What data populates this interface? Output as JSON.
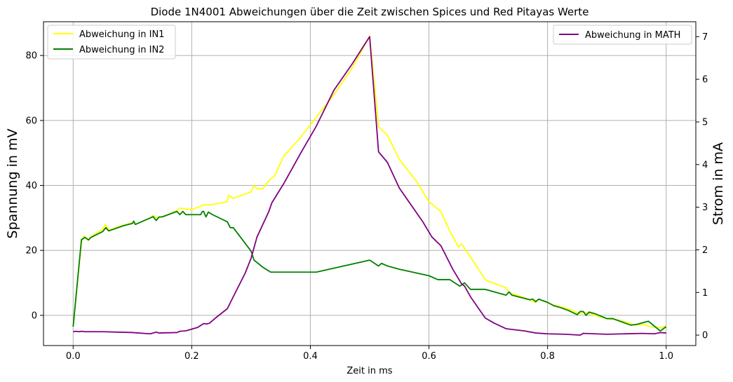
{
  "chart_data": {
    "type": "line",
    "title": "Diode 1N4001 Abweichungen über die Zeit zwischen Spices und Red Pitayas Werte",
    "xlabel": "Zeit in ms",
    "ylabel_left": "Spannung in mV",
    "ylabel_right": "Strom in mA",
    "xlim": [
      -0.05,
      1.05
    ],
    "ylim_left": [
      -9.3,
      90.4
    ],
    "ylim_right": [
      -0.245,
      7.35
    ],
    "x_ticks": [
      0.0,
      0.2,
      0.4,
      0.6,
      0.8,
      1.0
    ],
    "x_tick_labels": [
      "0.0",
      "0.2",
      "0.4",
      "0.6",
      "0.8",
      "1.0"
    ],
    "y_left_ticks": [
      0,
      20,
      40,
      60,
      80
    ],
    "y_left_tick_labels": [
      "0",
      "20",
      "40",
      "60",
      "80"
    ],
    "y_right_ticks": [
      0,
      1,
      2,
      3,
      4,
      5,
      6,
      7
    ],
    "y_right_tick_labels": [
      "0",
      "1",
      "2",
      "3",
      "4",
      "5",
      "6",
      "7"
    ],
    "grid": true,
    "legend_left_placement": "top-left",
    "legend_right_placement": "top-right",
    "series": [
      {
        "name": "Abweichung in IN1",
        "axis": "left",
        "color": "#ffff00",
        "points": [
          [
            0.0,
            -3.5
          ],
          [
            0.014,
            22.5
          ],
          [
            0.018,
            24.5
          ],
          [
            0.024,
            23.2
          ],
          [
            0.03,
            24.2
          ],
          [
            0.05,
            26.5
          ],
          [
            0.054,
            28
          ],
          [
            0.06,
            26.2
          ],
          [
            0.08,
            27.5
          ],
          [
            0.1,
            28.5
          ],
          [
            0.105,
            28
          ],
          [
            0.13,
            30
          ],
          [
            0.135,
            30.8
          ],
          [
            0.14,
            30
          ],
          [
            0.15,
            30.3
          ],
          [
            0.175,
            32.2
          ],
          [
            0.18,
            33
          ],
          [
            0.2,
            32.5
          ],
          [
            0.22,
            34
          ],
          [
            0.23,
            34
          ],
          [
            0.26,
            35
          ],
          [
            0.262,
            37
          ],
          [
            0.27,
            36
          ],
          [
            0.3,
            38
          ],
          [
            0.305,
            40
          ],
          [
            0.31,
            39
          ],
          [
            0.32,
            39
          ],
          [
            0.33,
            41.5
          ],
          [
            0.34,
            43
          ],
          [
            0.355,
            49
          ],
          [
            0.38,
            54
          ],
          [
            0.41,
            61
          ],
          [
            0.44,
            68
          ],
          [
            0.47,
            76
          ],
          [
            0.5,
            86
          ],
          [
            0.515,
            58
          ],
          [
            0.53,
            55.5
          ],
          [
            0.55,
            48
          ],
          [
            0.58,
            41
          ],
          [
            0.6,
            35
          ],
          [
            0.62,
            32
          ],
          [
            0.635,
            26
          ],
          [
            0.65,
            21
          ],
          [
            0.655,
            22
          ],
          [
            0.67,
            18
          ],
          [
            0.695,
            11
          ],
          [
            0.7,
            10.5
          ],
          [
            0.73,
            8.5
          ],
          [
            0.735,
            7
          ],
          [
            0.76,
            5.5
          ],
          [
            0.78,
            4
          ],
          [
            0.785,
            5
          ],
          [
            0.81,
            3.2
          ],
          [
            0.835,
            2
          ],
          [
            0.855,
            0.5
          ],
          [
            0.86,
            1
          ],
          [
            0.865,
            0.8
          ],
          [
            0.88,
            0
          ],
          [
            0.9,
            -1
          ],
          [
            0.92,
            -1.5
          ],
          [
            0.94,
            -2.5
          ],
          [
            0.945,
            -3
          ],
          [
            0.96,
            -2.8
          ],
          [
            0.975,
            -3.5
          ],
          [
            0.99,
            -3.8
          ],
          [
            1.0,
            -3.2
          ]
        ]
      },
      {
        "name": "Abweichung in IN2",
        "axis": "left",
        "color": "#008000",
        "points": [
          [
            0.0,
            -3.5
          ],
          [
            0.014,
            23.3
          ],
          [
            0.02,
            24
          ],
          [
            0.026,
            23.2
          ],
          [
            0.03,
            24
          ],
          [
            0.05,
            25.8
          ],
          [
            0.055,
            27
          ],
          [
            0.06,
            26
          ],
          [
            0.085,
            27.6
          ],
          [
            0.1,
            28.3
          ],
          [
            0.102,
            29
          ],
          [
            0.105,
            28
          ],
          [
            0.13,
            30
          ],
          [
            0.135,
            30.4
          ],
          [
            0.14,
            29.2
          ],
          [
            0.145,
            30.3
          ],
          [
            0.15,
            30.3
          ],
          [
            0.175,
            32
          ],
          [
            0.18,
            31
          ],
          [
            0.185,
            32
          ],
          [
            0.19,
            31
          ],
          [
            0.215,
            31
          ],
          [
            0.218,
            32
          ],
          [
            0.22,
            32
          ],
          [
            0.224,
            30.3
          ],
          [
            0.228,
            31.8
          ],
          [
            0.235,
            31
          ],
          [
            0.26,
            28.8
          ],
          [
            0.265,
            27
          ],
          [
            0.27,
            27
          ],
          [
            0.3,
            19.8
          ],
          [
            0.305,
            17
          ],
          [
            0.32,
            14.8
          ],
          [
            0.333,
            13.3
          ],
          [
            0.35,
            13.3
          ],
          [
            0.41,
            13.3
          ],
          [
            0.5,
            17
          ],
          [
            0.515,
            15.2
          ],
          [
            0.52,
            16
          ],
          [
            0.53,
            15.2
          ],
          [
            0.55,
            14.2
          ],
          [
            0.6,
            12.2
          ],
          [
            0.615,
            11
          ],
          [
            0.635,
            11
          ],
          [
            0.652,
            9
          ],
          [
            0.66,
            10
          ],
          [
            0.67,
            8
          ],
          [
            0.695,
            8
          ],
          [
            0.73,
            6.2
          ],
          [
            0.735,
            7.2
          ],
          [
            0.74,
            6.2
          ],
          [
            0.77,
            4.8
          ],
          [
            0.775,
            5
          ],
          [
            0.78,
            4.2
          ],
          [
            0.785,
            5
          ],
          [
            0.8,
            4
          ],
          [
            0.81,
            3
          ],
          [
            0.82,
            2.5
          ],
          [
            0.835,
            1.5
          ],
          [
            0.85,
            0.2
          ],
          [
            0.855,
            1.2
          ],
          [
            0.86,
            1.2
          ],
          [
            0.865,
            0
          ],
          [
            0.87,
            1
          ],
          [
            0.88,
            0.5
          ],
          [
            0.9,
            -1
          ],
          [
            0.91,
            -1
          ],
          [
            0.94,
            -3
          ],
          [
            0.95,
            -2.8
          ],
          [
            0.97,
            -1.8
          ],
          [
            0.99,
            -4.8
          ],
          [
            1.0,
            -3.5
          ]
        ]
      },
      {
        "name": "Abweichung in MATH",
        "axis": "right",
        "color": "#800080",
        "points": [
          [
            0.0,
            0.08
          ],
          [
            0.005,
            0.09
          ],
          [
            0.01,
            0.08
          ],
          [
            0.015,
            0.09
          ],
          [
            0.02,
            0.08
          ],
          [
            0.05,
            0.08
          ],
          [
            0.1,
            0.06
          ],
          [
            0.13,
            0.03
          ],
          [
            0.14,
            0.07
          ],
          [
            0.145,
            0.05
          ],
          [
            0.175,
            0.06
          ],
          [
            0.18,
            0.09
          ],
          [
            0.19,
            0.1
          ],
          [
            0.21,
            0.18
          ],
          [
            0.22,
            0.27
          ],
          [
            0.225,
            0.26
          ],
          [
            0.23,
            0.28
          ],
          [
            0.24,
            0.4
          ],
          [
            0.26,
            0.62
          ],
          [
            0.27,
            0.9
          ],
          [
            0.29,
            1.45
          ],
          [
            0.3,
            1.8
          ],
          [
            0.31,
            2.3
          ],
          [
            0.32,
            2.6
          ],
          [
            0.325,
            2.75
          ],
          [
            0.33,
            2.9
          ],
          [
            0.335,
            3.1
          ],
          [
            0.355,
            3.55
          ],
          [
            0.385,
            4.3
          ],
          [
            0.41,
            4.9
          ],
          [
            0.44,
            5.75
          ],
          [
            0.47,
            6.35
          ],
          [
            0.5,
            7.0
          ],
          [
            0.515,
            4.3
          ],
          [
            0.53,
            4.05
          ],
          [
            0.55,
            3.45
          ],
          [
            0.57,
            3.05
          ],
          [
            0.59,
            2.65
          ],
          [
            0.605,
            2.3
          ],
          [
            0.62,
            2.1
          ],
          [
            0.64,
            1.55
          ],
          [
            0.655,
            1.2
          ],
          [
            0.66,
            1.15
          ],
          [
            0.67,
            0.9
          ],
          [
            0.685,
            0.6
          ],
          [
            0.695,
            0.4
          ],
          [
            0.71,
            0.28
          ],
          [
            0.73,
            0.15
          ],
          [
            0.76,
            0.1
          ],
          [
            0.78,
            0.05
          ],
          [
            0.8,
            0.03
          ],
          [
            0.83,
            0.02
          ],
          [
            0.855,
            0.0
          ],
          [
            0.86,
            0.04
          ],
          [
            0.9,
            0.02
          ],
          [
            0.96,
            0.04
          ],
          [
            0.98,
            0.03
          ],
          [
            0.99,
            0.06
          ],
          [
            1.0,
            0.05
          ]
        ]
      }
    ]
  }
}
